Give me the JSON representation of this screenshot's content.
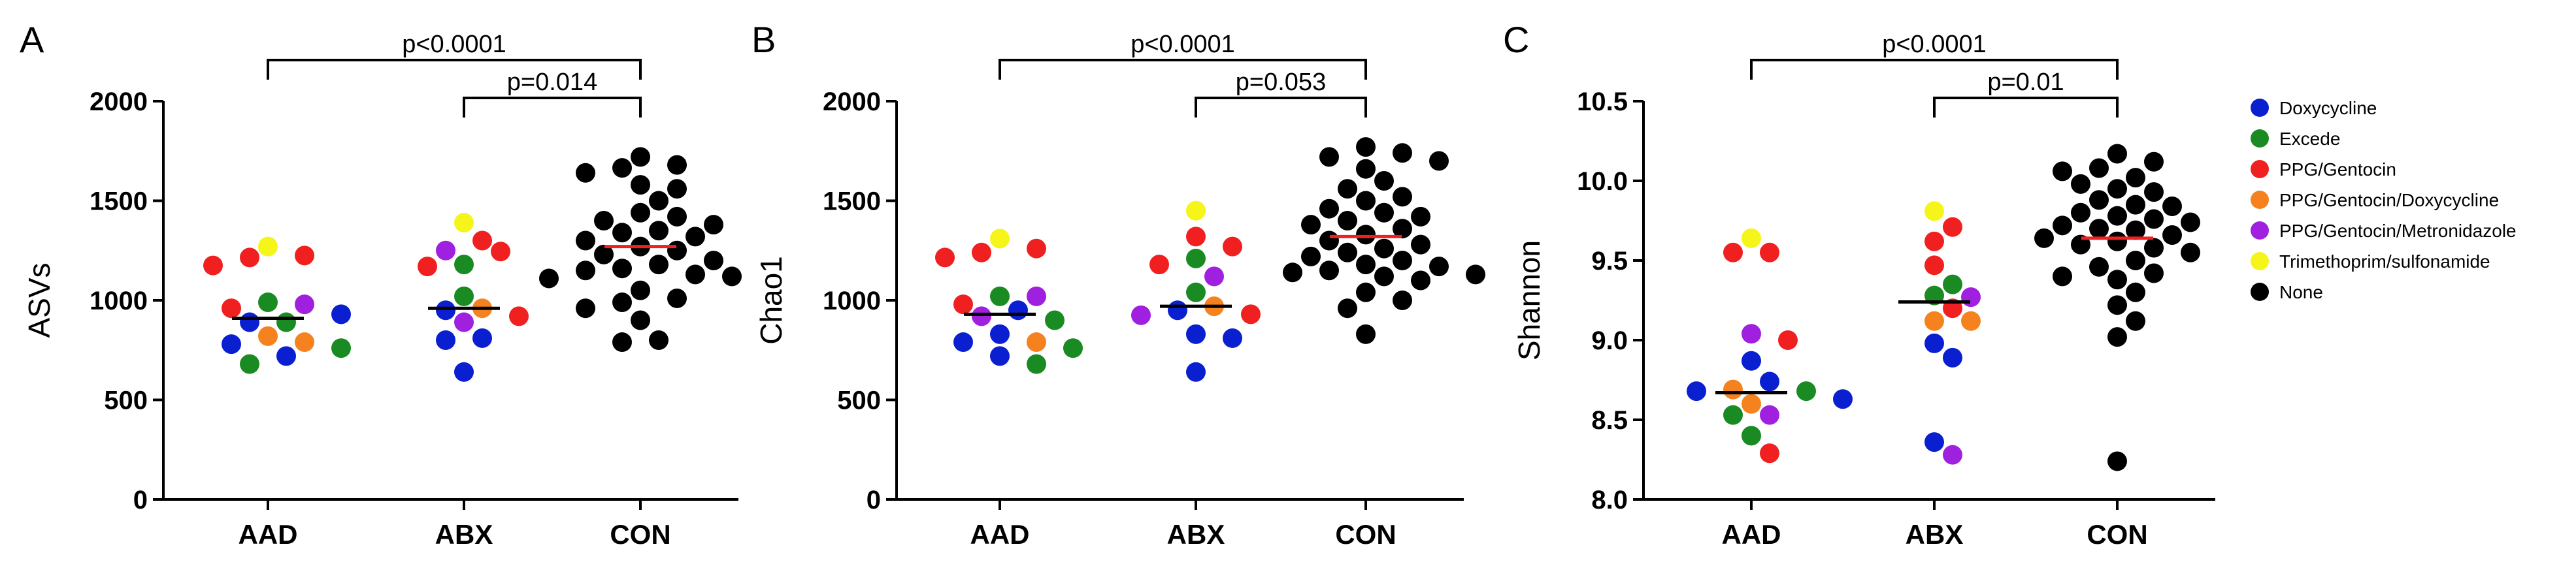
{
  "groups_legend": [
    {
      "name": "Doxycycline",
      "color": "#0a1fd0"
    },
    {
      "name": "Excede",
      "color": "#1a8a22"
    },
    {
      "name": "PPG/Gentocin",
      "color": "#f02020"
    },
    {
      "name": "PPG/Gentocin/Doxycycline",
      "color": "#f5821e"
    },
    {
      "name": "PPG/Gentocin/Metronidazole",
      "color": "#a020e0"
    },
    {
      "name": "Trimethoprim/sulfonamide",
      "color": "#f5f51a"
    },
    {
      "name": "None",
      "color": "#000000"
    }
  ],
  "chart_data": [
    {
      "panel": "A",
      "type": "scatter",
      "ylabel": "ASVs",
      "categories": [
        "AAD",
        "ABX",
        "CON"
      ],
      "ylim": [
        0,
        2000
      ],
      "yticks": [
        0,
        500,
        1000,
        1500,
        2000
      ],
      "medians": [
        910,
        960,
        1270
      ],
      "median_colors": [
        "#000000",
        "#000000",
        "#f02020"
      ],
      "comparisons": [
        {
          "label": "p<0.0001",
          "from": "AAD",
          "to": "CON"
        },
        {
          "label": "p=0.014",
          "from": "ABX",
          "to": "CON"
        }
      ],
      "points": {
        "AAD": [
          {
            "y": 1270,
            "g": "Trimethoprim/sulfonamide"
          },
          {
            "y": 1225,
            "g": "PPG/Gentocin"
          },
          {
            "y": 1215,
            "g": "PPG/Gentocin"
          },
          {
            "y": 1175,
            "g": "PPG/Gentocin"
          },
          {
            "y": 990,
            "g": "Excede"
          },
          {
            "y": 980,
            "g": "PPG/Gentocin/Metronidazole"
          },
          {
            "y": 960,
            "g": "PPG/Gentocin"
          },
          {
            "y": 930,
            "g": "Doxycycline"
          },
          {
            "y": 890,
            "g": "Excede"
          },
          {
            "y": 890,
            "g": "Doxycycline"
          },
          {
            "y": 820,
            "g": "PPG/Gentocin/Doxycycline"
          },
          {
            "y": 790,
            "g": "PPG/Gentocin/Doxycycline"
          },
          {
            "y": 780,
            "g": "Doxycycline"
          },
          {
            "y": 760,
            "g": "Excede"
          },
          {
            "y": 720,
            "g": "Doxycycline"
          },
          {
            "y": 680,
            "g": "Excede"
          }
        ],
        "ABX": [
          {
            "y": 1390,
            "g": "Trimethoprim/sulfonamide"
          },
          {
            "y": 1300,
            "g": "PPG/Gentocin"
          },
          {
            "y": 1250,
            "g": "PPG/Gentocin/Metronidazole"
          },
          {
            "y": 1245,
            "g": "PPG/Gentocin"
          },
          {
            "y": 1180,
            "g": "Excede"
          },
          {
            "y": 1170,
            "g": "PPG/Gentocin"
          },
          {
            "y": 1020,
            "g": "Excede"
          },
          {
            "y": 960,
            "g": "PPG/Gentocin/Doxycycline"
          },
          {
            "y": 950,
            "g": "Doxycycline"
          },
          {
            "y": 920,
            "g": "PPG/Gentocin"
          },
          {
            "y": 890,
            "g": "PPG/Gentocin/Metronidazole"
          },
          {
            "y": 810,
            "g": "Doxycycline"
          },
          {
            "y": 800,
            "g": "Doxycycline"
          },
          {
            "y": 640,
            "g": "Doxycycline"
          }
        ],
        "CON": [
          1720,
          1680,
          1665,
          1640,
          1580,
          1560,
          1500,
          1440,
          1420,
          1400,
          1380,
          1350,
          1340,
          1320,
          1300,
          1270,
          1250,
          1230,
          1200,
          1180,
          1160,
          1150,
          1130,
          1120,
          1110,
          1050,
          1010,
          990,
          960,
          900,
          800,
          790
        ]
      }
    },
    {
      "panel": "B",
      "type": "scatter",
      "ylabel": "Chao1",
      "categories": [
        "AAD",
        "ABX",
        "CON"
      ],
      "ylim": [
        0,
        2000
      ],
      "yticks": [
        0,
        500,
        1000,
        1500,
        2000
      ],
      "medians": [
        930,
        970,
        1320
      ],
      "median_colors": [
        "#000000",
        "#000000",
        "#f02020"
      ],
      "comparisons": [
        {
          "label": "p<0.0001",
          "from": "AAD",
          "to": "CON"
        },
        {
          "label": "p=0.053",
          "from": "ABX",
          "to": "CON"
        }
      ],
      "points": {
        "AAD": [
          {
            "y": 1310,
            "g": "Trimethoprim/sulfonamide"
          },
          {
            "y": 1260,
            "g": "PPG/Gentocin"
          },
          {
            "y": 1240,
            "g": "PPG/Gentocin"
          },
          {
            "y": 1215,
            "g": "PPG/Gentocin"
          },
          {
            "y": 1020,
            "g": "Excede"
          },
          {
            "y": 1020,
            "g": "PPG/Gentocin/Metronidazole"
          },
          {
            "y": 980,
            "g": "PPG/Gentocin"
          },
          {
            "y": 950,
            "g": "Doxycycline"
          },
          {
            "y": 920,
            "g": "PPG/Gentocin/Metronidazole"
          },
          {
            "y": 900,
            "g": "Excede"
          },
          {
            "y": 830,
            "g": "Doxycycline"
          },
          {
            "y": 790,
            "g": "PPG/Gentocin/Doxycycline"
          },
          {
            "y": 790,
            "g": "Doxycycline"
          },
          {
            "y": 760,
            "g": "Excede"
          },
          {
            "y": 720,
            "g": "Doxycycline"
          },
          {
            "y": 680,
            "g": "Excede"
          }
        ],
        "ABX": [
          {
            "y": 1450,
            "g": "Trimethoprim/sulfonamide"
          },
          {
            "y": 1320,
            "g": "PPG/Gentocin"
          },
          {
            "y": 1270,
            "g": "PPG/Gentocin"
          },
          {
            "y": 1210,
            "g": "Excede"
          },
          {
            "y": 1180,
            "g": "PPG/Gentocin"
          },
          {
            "y": 1120,
            "g": "PPG/Gentocin/Metronidazole"
          },
          {
            "y": 1040,
            "g": "Excede"
          },
          {
            "y": 970,
            "g": "PPG/Gentocin/Doxycycline"
          },
          {
            "y": 950,
            "g": "Doxycycline"
          },
          {
            "y": 930,
            "g": "PPG/Gentocin"
          },
          {
            "y": 925,
            "g": "PPG/Gentocin/Metronidazole"
          },
          {
            "y": 830,
            "g": "Doxycycline"
          },
          {
            "y": 810,
            "g": "Doxycycline"
          },
          {
            "y": 640,
            "g": "Doxycycline"
          }
        ],
        "CON": [
          1770,
          1740,
          1720,
          1700,
          1660,
          1600,
          1560,
          1520,
          1500,
          1460,
          1440,
          1420,
          1400,
          1380,
          1360,
          1330,
          1300,
          1280,
          1260,
          1240,
          1220,
          1200,
          1180,
          1170,
          1150,
          1140,
          1130,
          1120,
          1100,
          1040,
          1000,
          960,
          830
        ]
      }
    },
    {
      "panel": "C",
      "type": "scatter",
      "ylabel": "Shannon",
      "categories": [
        "AAD",
        "ABX",
        "CON"
      ],
      "ylim": [
        8.0,
        10.5
      ],
      "yticks": [
        8.0,
        8.5,
        9.0,
        9.5,
        10.0,
        10.5
      ],
      "medians": [
        8.67,
        9.24,
        9.64
      ],
      "median_colors": [
        "#000000",
        "#000000",
        "#f02020"
      ],
      "comparisons": [
        {
          "label": "p<0.0001",
          "from": "AAD",
          "to": "CON"
        },
        {
          "label": "p=0.01",
          "from": "ABX",
          "to": "CON"
        }
      ],
      "points": {
        "AAD": [
          {
            "y": 9.64,
            "g": "Trimethoprim/sulfonamide"
          },
          {
            "y": 9.55,
            "g": "PPG/Gentocin"
          },
          {
            "y": 9.55,
            "g": "PPG/Gentocin"
          },
          {
            "y": 9.04,
            "g": "PPG/Gentocin/Metronidazole"
          },
          {
            "y": 9.0,
            "g": "PPG/Gentocin"
          },
          {
            "y": 8.87,
            "g": "Doxycycline"
          },
          {
            "y": 8.74,
            "g": "Doxycycline"
          },
          {
            "y": 8.69,
            "g": "PPG/Gentocin/Doxycycline"
          },
          {
            "y": 8.68,
            "g": "Excede"
          },
          {
            "y": 8.68,
            "g": "Doxycycline"
          },
          {
            "y": 8.63,
            "g": "Doxycycline"
          },
          {
            "y": 8.6,
            "g": "PPG/Gentocin/Doxycycline"
          },
          {
            "y": 8.53,
            "g": "PPG/Gentocin/Metronidazole"
          },
          {
            "y": 8.53,
            "g": "Excede"
          },
          {
            "y": 8.4,
            "g": "Excede"
          },
          {
            "y": 8.29,
            "g": "PPG/Gentocin"
          }
        ],
        "ABX": [
          {
            "y": 9.81,
            "g": "Trimethoprim/sulfonamide"
          },
          {
            "y": 9.71,
            "g": "PPG/Gentocin"
          },
          {
            "y": 9.62,
            "g": "PPG/Gentocin"
          },
          {
            "y": 9.47,
            "g": "PPG/Gentocin"
          },
          {
            "y": 9.35,
            "g": "Excede"
          },
          {
            "y": 9.28,
            "g": "Excede"
          },
          {
            "y": 9.27,
            "g": "PPG/Gentocin/Metronidazole"
          },
          {
            "y": 9.2,
            "g": "PPG/Gentocin"
          },
          {
            "y": 9.12,
            "g": "PPG/Gentocin/Doxycycline"
          },
          {
            "y": 9.12,
            "g": "PPG/Gentocin/Doxycycline"
          },
          {
            "y": 8.98,
            "g": "Doxycycline"
          },
          {
            "y": 8.89,
            "g": "Doxycycline"
          },
          {
            "y": 8.36,
            "g": "Doxycycline"
          },
          {
            "y": 8.28,
            "g": "PPG/Gentocin/Metronidazole"
          }
        ],
        "CON": [
          10.17,
          10.12,
          10.08,
          10.06,
          10.02,
          9.98,
          9.95,
          9.93,
          9.88,
          9.85,
          9.84,
          9.8,
          9.78,
          9.76,
          9.74,
          9.72,
          9.7,
          9.69,
          9.66,
          9.64,
          9.62,
          9.6,
          9.58,
          9.55,
          9.5,
          9.46,
          9.42,
          9.4,
          9.38,
          9.3,
          9.22,
          9.12,
          9.02,
          8.24
        ]
      }
    }
  ]
}
